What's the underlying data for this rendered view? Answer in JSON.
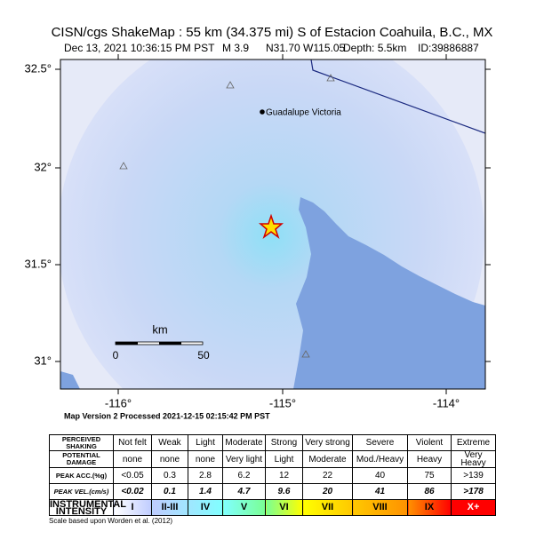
{
  "header": {
    "title": "CISN/cgs ShakeMap : 55 km (34.375 mi) S of Estacion Coahuila, B.C., MX",
    "subtitle": [
      "Dec 13, 2021 10:36:15 PM PST",
      "M 3.9",
      "N31.70 W115.05",
      "Depth: 5.5km",
      "ID:39886887"
    ]
  },
  "map": {
    "lat_labels": [
      "32.5°",
      "32°",
      "31.5°",
      "31°"
    ],
    "lon_labels": [
      "-116°",
      "-115°",
      "-114°"
    ],
    "city": "Guadalupe Victoria",
    "scale": {
      "unit": "km",
      "labels": [
        "0",
        "50"
      ]
    },
    "version": "Map Version 2 Processed 2021-12-15 02:15:42 PM PST"
  },
  "legend": {
    "rows": [
      {
        "label": "PERCEIVED SHAKING",
        "cells": [
          "Not felt",
          "Weak",
          "Light",
          "Moderate",
          "Strong",
          "Very strong",
          "Severe",
          "Violent",
          "Extreme"
        ]
      },
      {
        "label": "POTENTIAL DAMAGE",
        "cells": [
          "none",
          "none",
          "none",
          "Very light",
          "Light",
          "Moderate",
          "Mod./Heavy",
          "Heavy",
          "Very Heavy"
        ]
      },
      {
        "label": "PEAK ACC.(%g)",
        "cells": [
          "<0.05",
          "0.3",
          "2.8",
          "6.2",
          "12",
          "22",
          "40",
          "75",
          ">139"
        ]
      },
      {
        "label": "PEAK VEL.(cm/s)",
        "cells": [
          "<0.02",
          "0.1",
          "1.4",
          "4.7",
          "9.6",
          "20",
          "41",
          "86",
          ">178"
        ]
      },
      {
        "label": "INSTRUMENTAL INTENSITY",
        "cells": [
          "I",
          "II-III",
          "IV",
          "V",
          "VI",
          "VII",
          "VIII",
          "IX",
          "X+"
        ]
      }
    ],
    "note": "Scale based upon Worden et al. (2012)"
  }
}
